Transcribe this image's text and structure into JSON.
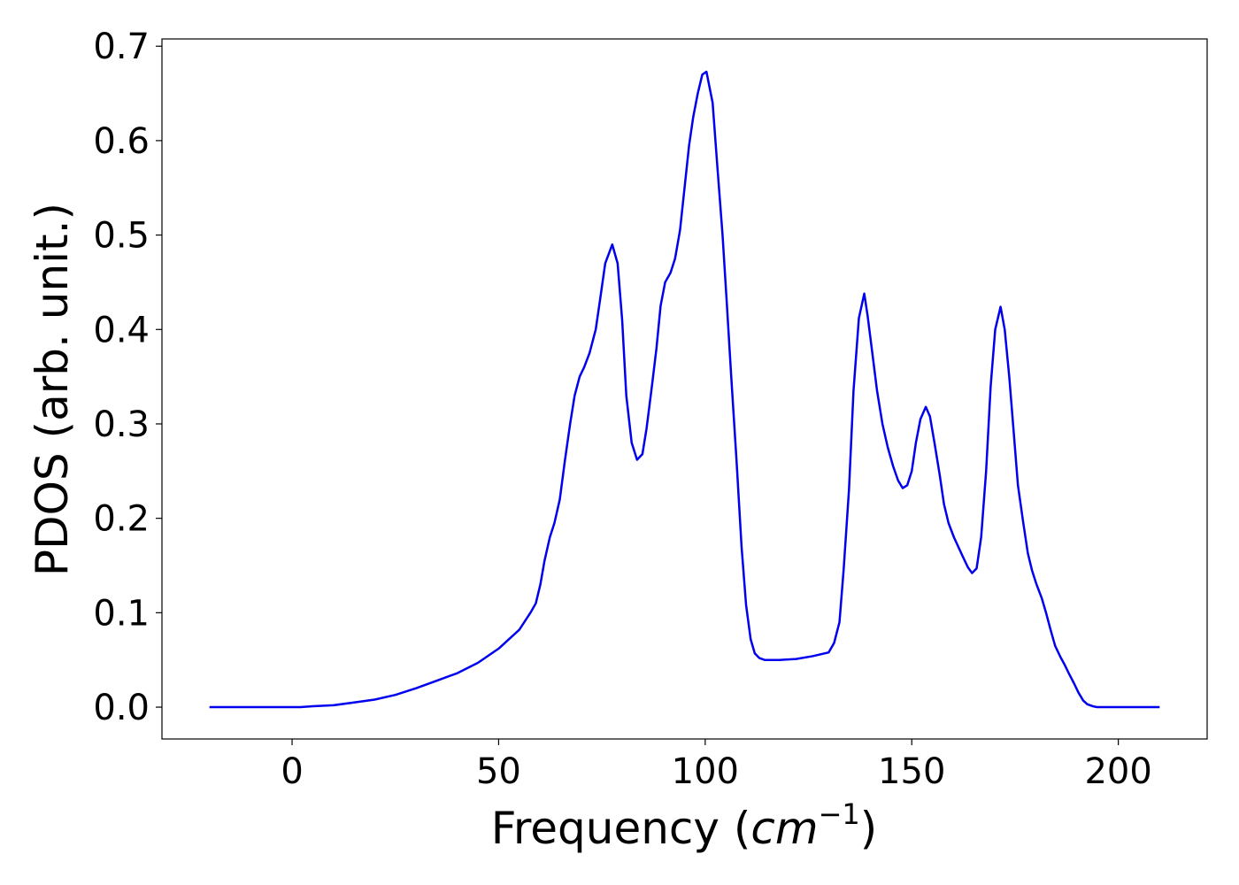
{
  "chart_data": {
    "type": "line",
    "xlabel": [
      "Frequency (",
      "cm",
      "−1",
      ")"
    ],
    "ylabel": "PDOS (arb. unit.)",
    "xlim": [
      -31.5,
      221.5
    ],
    "ylim": [
      -0.0337,
      0.7077
    ],
    "xticks": [
      0,
      50,
      100,
      150,
      200
    ],
    "yticks": [
      {
        "value": 0,
        "label": "0.0"
      },
      0.1,
      0.2,
      0.3,
      0.4,
      0.5,
      0.6,
      0.7
    ],
    "grid": false,
    "series": [
      {
        "color": "#0000ee",
        "x": [
          -20,
          -10,
          0,
          2,
          5,
          10,
          15,
          20,
          25,
          30,
          35,
          40,
          45,
          50,
          55,
          57.7,
          59,
          60.1,
          61.1,
          62.4,
          63.5,
          64.8,
          66,
          67.3,
          68.4,
          69.6,
          70.7,
          72,
          73.5,
          74.5,
          75.8,
          77.5,
          78.8,
          79.9,
          80.9,
          82.2,
          83.5,
          84.8,
          85.8,
          87.1,
          88.2,
          89.2,
          90.3,
          91.6,
          92.7,
          93.9,
          95,
          96.1,
          97.1,
          98.2,
          99.3,
          100.3,
          101.8,
          102.9,
          104.2,
          105.2,
          106.3,
          107.6,
          108.8,
          109.9,
          111,
          112,
          113.1,
          114.4,
          118,
          122,
          126,
          129.9,
          131.2,
          132.5,
          133.5,
          134.8,
          135.9,
          137.2,
          138.5,
          139.3,
          140.6,
          141.6,
          142.9,
          144.2,
          145.5,
          146.7,
          147.8,
          148.9,
          150,
          151,
          152.1,
          153.4,
          154.4,
          155.5,
          156.8,
          157.8,
          158.9,
          160.2,
          162.3,
          163.6,
          164.6,
          165.7,
          166.8,
          168,
          169.1,
          170.2,
          171.5,
          172.5,
          173.6,
          174.7,
          175.7,
          177,
          178.1,
          179.1,
          180.2,
          181.5,
          182.5,
          183.6,
          184.7,
          186,
          187,
          188,
          189.3,
          190.4,
          191.5,
          192.5,
          193.8,
          194.9,
          200,
          210
        ],
        "values": [
          0,
          0,
          0,
          0,
          0.001,
          0.002,
          0.005,
          0.008,
          0.013,
          0.02,
          0.028,
          0.036,
          0.047,
          0.062,
          0.082,
          0.1,
          0.11,
          0.13,
          0.155,
          0.18,
          0.195,
          0.22,
          0.26,
          0.3,
          0.33,
          0.35,
          0.36,
          0.375,
          0.4,
          0.43,
          0.47,
          0.49,
          0.47,
          0.41,
          0.33,
          0.28,
          0.262,
          0.268,
          0.295,
          0.34,
          0.38,
          0.425,
          0.45,
          0.46,
          0.475,
          0.505,
          0.55,
          0.595,
          0.625,
          0.65,
          0.67,
          0.673,
          0.64,
          0.575,
          0.5,
          0.43,
          0.35,
          0.26,
          0.17,
          0.108,
          0.072,
          0.057,
          0.052,
          0.05,
          0.05,
          0.051,
          0.054,
          0.058,
          0.068,
          0.09,
          0.145,
          0.23,
          0.335,
          0.412,
          0.438,
          0.415,
          0.37,
          0.335,
          0.3,
          0.275,
          0.255,
          0.24,
          0.232,
          0.235,
          0.25,
          0.28,
          0.305,
          0.318,
          0.308,
          0.28,
          0.245,
          0.215,
          0.195,
          0.18,
          0.16,
          0.148,
          0.142,
          0.147,
          0.18,
          0.25,
          0.34,
          0.4,
          0.424,
          0.4,
          0.35,
          0.29,
          0.235,
          0.195,
          0.163,
          0.145,
          0.13,
          0.115,
          0.1,
          0.082,
          0.065,
          0.053,
          0.045,
          0.036,
          0.025,
          0.015,
          0.007,
          0.003,
          0.001,
          0,
          0,
          0
        ]
      }
    ]
  }
}
